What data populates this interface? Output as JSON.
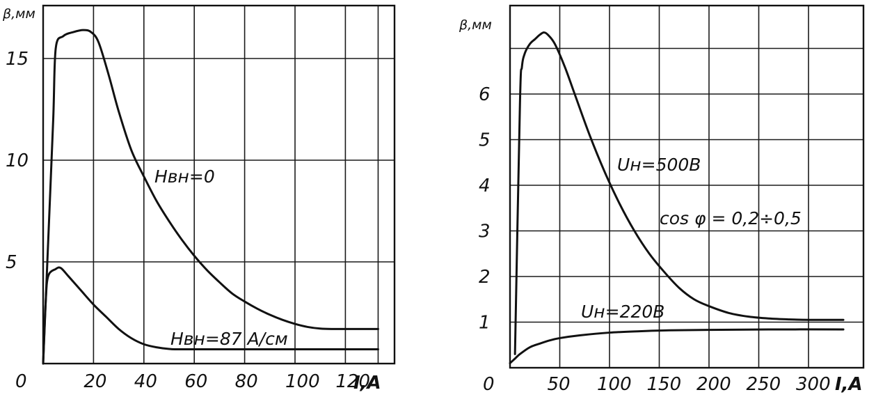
{
  "chart_data": [
    {
      "type": "line",
      "ylabel": "β,мм",
      "xlabel": "I,A",
      "origin_label": "0",
      "x_ticks": [
        20,
        40,
        60,
        80,
        100,
        120
      ],
      "y_ticks": [
        5,
        10,
        15
      ],
      "xlim": [
        0,
        135
      ],
      "ylim": [
        0,
        18
      ],
      "grid": true,
      "series": [
        {
          "name": "Нвн=0",
          "points": [
            [
              0,
              0
            ],
            [
              2,
              6
            ],
            [
              4,
              12
            ],
            [
              5,
              15.5
            ],
            [
              8,
              16.1
            ],
            [
              12,
              16.3
            ],
            [
              16,
              16.4
            ],
            [
              19,
              16.3
            ],
            [
              22,
              15.8
            ],
            [
              26,
              14.2
            ],
            [
              30,
              12.4
            ],
            [
              35,
              10.5
            ],
            [
              40,
              9.2
            ],
            [
              45,
              8.0
            ],
            [
              50,
              7.0
            ],
            [
              55,
              6.1
            ],
            [
              60,
              5.3
            ],
            [
              65,
              4.6
            ],
            [
              70,
              4.0
            ],
            [
              75,
              3.45
            ],
            [
              80,
              3.05
            ],
            [
              85,
              2.7
            ],
            [
              90,
              2.4
            ],
            [
              95,
              2.15
            ],
            [
              100,
              1.95
            ],
            [
              105,
              1.8
            ],
            [
              110,
              1.72
            ],
            [
              115,
              1.7
            ],
            [
              125,
              1.7
            ],
            [
              133,
              1.7
            ]
          ]
        },
        {
          "name": "Нвн=87 А/см",
          "points": [
            [
              0,
              0
            ],
            [
              1,
              3
            ],
            [
              2,
              4.3
            ],
            [
              5,
              4.65
            ],
            [
              7,
              4.7
            ],
            [
              10,
              4.3
            ],
            [
              15,
              3.6
            ],
            [
              20,
              2.9
            ],
            [
              25,
              2.3
            ],
            [
              30,
              1.7
            ],
            [
              35,
              1.25
            ],
            [
              40,
              0.95
            ],
            [
              45,
              0.8
            ],
            [
              50,
              0.72
            ],
            [
              55,
              0.7
            ],
            [
              80,
              0.7
            ],
            [
              133,
              0.7
            ]
          ]
        }
      ],
      "annotations": [
        "Нвн=0",
        "Нвн=87 А/см"
      ]
    },
    {
      "type": "line",
      "ylabel": "β,мм",
      "xlabel": "I,A",
      "origin_label": "0",
      "x_ticks": [
        50,
        100,
        150,
        200,
        250,
        300
      ],
      "y_ticks": [
        1,
        2,
        3,
        4,
        5,
        6
      ],
      "xlim": [
        0,
        340
      ],
      "ylim": [
        0,
        8
      ],
      "grid": true,
      "series": [
        {
          "name": "Uн=500В",
          "points": [
            [
              5,
              0.3
            ],
            [
              10,
              5.8
            ],
            [
              12,
              6.6
            ],
            [
              15,
              6.9
            ],
            [
              20,
              7.1
            ],
            [
              25,
              7.2
            ],
            [
              30,
              7.3
            ],
            [
              34,
              7.35
            ],
            [
              38,
              7.3
            ],
            [
              45,
              7.1
            ],
            [
              55,
              6.6
            ],
            [
              65,
              6.0
            ],
            [
              80,
              5.1
            ],
            [
              95,
              4.3
            ],
            [
              110,
              3.6
            ],
            [
              125,
              3.0
            ],
            [
              140,
              2.5
            ],
            [
              155,
              2.1
            ],
            [
              170,
              1.75
            ],
            [
              185,
              1.5
            ],
            [
              200,
              1.35
            ],
            [
              220,
              1.2
            ],
            [
              240,
              1.12
            ],
            [
              260,
              1.08
            ],
            [
              280,
              1.06
            ],
            [
              300,
              1.05
            ],
            [
              335,
              1.05
            ]
          ]
        },
        {
          "name": "Uн=220В",
          "points": [
            [
              0,
              0.1
            ],
            [
              5,
              0.2
            ],
            [
              10,
              0.3
            ],
            [
              20,
              0.45
            ],
            [
              30,
              0.53
            ],
            [
              40,
              0.6
            ],
            [
              50,
              0.65
            ],
            [
              70,
              0.71
            ],
            [
              100,
              0.77
            ],
            [
              130,
              0.8
            ],
            [
              160,
              0.82
            ],
            [
              200,
              0.83
            ],
            [
              260,
              0.84
            ],
            [
              335,
              0.84
            ]
          ]
        }
      ],
      "annotations": [
        "Uн=500В",
        "cos φ = 0,2÷0,5",
        "Uн=220В"
      ]
    }
  ],
  "left": {
    "ylabel": "β,мм",
    "xlabel": "I,A",
    "origin": "0",
    "ann_h0": "Нвн=0",
    "ann_h87": "Нвн=87 А/см"
  },
  "right": {
    "ylabel": "β,мм",
    "xlabel": "I,A",
    "origin": "0",
    "ann_u500": "Uн=500В",
    "ann_cos": "cos φ = 0,2÷0,5",
    "ann_u220": "Uн=220В"
  }
}
